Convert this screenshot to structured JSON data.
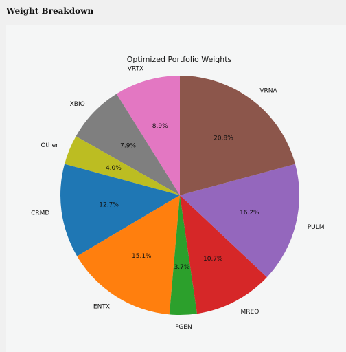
{
  "page": {
    "heading": "Weight Breakdown"
  },
  "chart_data": {
    "type": "pie",
    "title": "Optimized Portfolio Weights",
    "start_angle_deg": 90,
    "direction": "counterclockwise",
    "categories": [
      "VRTX",
      "XBIO",
      "Other",
      "CRMD",
      "ENTX",
      "FGEN",
      "MREO",
      "PULM",
      "VRNA"
    ],
    "values": [
      8.9,
      7.9,
      4.0,
      12.7,
      15.1,
      3.7,
      10.7,
      16.2,
      20.8
    ],
    "value_labels": [
      "8.9%",
      "7.9%",
      "4.0%",
      "12.7%",
      "15.1%",
      "3.7%",
      "10.7%",
      "16.2%",
      "20.8%"
    ],
    "colors": [
      "#e377c2",
      "#7f7f7f",
      "#bcbd22",
      "#1f77b4",
      "#ff7f0e",
      "#2ca02c",
      "#d62728",
      "#9467bd",
      "#8c564b"
    ]
  }
}
